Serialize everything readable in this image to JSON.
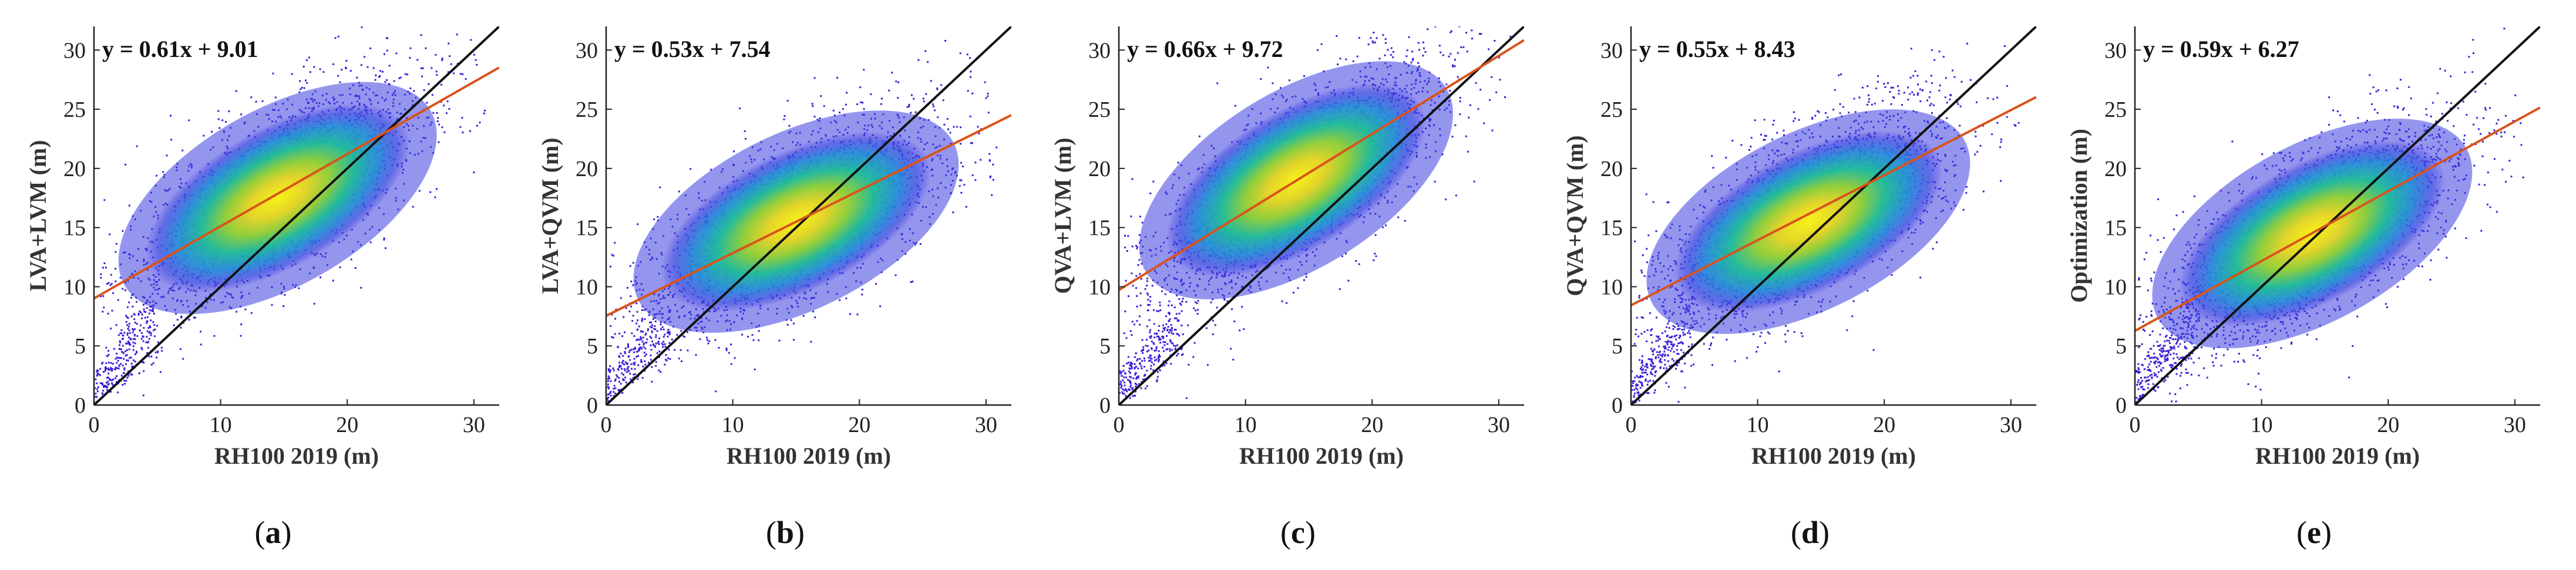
{
  "figure": {
    "panel_count": 5
  },
  "chart_data": [
    {
      "type": "scatter",
      "panel_label": "(a)",
      "panel_letter": "a",
      "xlabel": "RH100 2019 (m)",
      "ylabel": "LVA+LVM (m)",
      "xlim": [
        0,
        32
      ],
      "ylim": [
        0,
        32
      ],
      "xticks": [
        0,
        10,
        20,
        30
      ],
      "yticks": [
        0,
        5,
        10,
        15,
        20,
        25,
        30
      ],
      "equation": "y = 0.61x + 9.01",
      "fit": {
        "slope": 0.61,
        "intercept": 9.01,
        "color": "#d95319"
      },
      "identity_line": {
        "color": "#111111"
      },
      "density_center": [
        14.5,
        17.5
      ],
      "point_color": "#3b1fd9"
    },
    {
      "type": "scatter",
      "panel_label": "(b)",
      "panel_letter": "b",
      "xlabel": "RH100 2019 (m)",
      "ylabel": "LVA+QVM (m)",
      "xlim": [
        0,
        32
      ],
      "ylim": [
        0,
        32
      ],
      "xticks": [
        0,
        10,
        20,
        30
      ],
      "yticks": [
        0,
        5,
        10,
        15,
        20,
        25,
        30
      ],
      "equation": "y = 0.53x + 7.54",
      "fit": {
        "slope": 0.53,
        "intercept": 7.54,
        "color": "#d95319"
      },
      "identity_line": {
        "color": "#111111"
      },
      "density_center": [
        15.0,
        15.5
      ],
      "point_color": "#3b1fd9"
    },
    {
      "type": "scatter",
      "panel_label": "(c)",
      "panel_letter": "c",
      "xlabel": "RH100 2019 (m)",
      "ylabel": "QVA+LVM (m)",
      "xlim": [
        0,
        32
      ],
      "ylim": [
        0,
        32
      ],
      "xticks": [
        0,
        10,
        20,
        30
      ],
      "yticks": [
        0,
        5,
        10,
        15,
        20,
        25,
        30
      ],
      "equation": "y = 0.66x + 9.72",
      "fit": {
        "slope": 0.66,
        "intercept": 9.72,
        "color": "#d95319"
      },
      "identity_line": {
        "color": "#111111"
      },
      "density_center": [
        14.0,
        19.0
      ],
      "point_color": "#3b1fd9"
    },
    {
      "type": "scatter",
      "panel_label": "(d)",
      "panel_letter": "d",
      "xlabel": "RH100 2019 (m)",
      "ylabel": "QVA+QVM (m)",
      "xlim": [
        0,
        32
      ],
      "ylim": [
        0,
        32
      ],
      "xticks": [
        0,
        10,
        20,
        30
      ],
      "yticks": [
        0,
        5,
        10,
        15,
        20,
        25,
        30
      ],
      "equation": "y = 0.55x + 8.43",
      "fit": {
        "slope": 0.55,
        "intercept": 8.43,
        "color": "#d95319"
      },
      "identity_line": {
        "color": "#111111"
      },
      "density_center": [
        14.0,
        15.5
      ],
      "point_color": "#3b1fd9"
    },
    {
      "type": "scatter",
      "panel_label": "(e)",
      "panel_letter": "e",
      "xlabel": "RH100 2019 (m)",
      "ylabel": "Optimization (m)",
      "xlim": [
        0,
        32
      ],
      "ylim": [
        0,
        32
      ],
      "xticks": [
        0,
        10,
        20,
        30
      ],
      "yticks": [
        0,
        5,
        10,
        15,
        20,
        25,
        30
      ],
      "equation": "y = 0.59x + 6.27",
      "fit": {
        "slope": 0.59,
        "intercept": 6.27,
        "color": "#d95319"
      },
      "identity_line": {
        "color": "#111111"
      },
      "density_center": [
        14.0,
        14.5
      ],
      "point_color": "#3b1fd9"
    }
  ]
}
